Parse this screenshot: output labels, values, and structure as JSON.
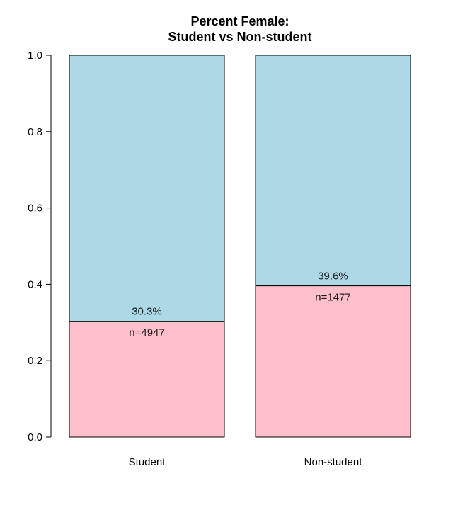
{
  "chart_data": {
    "type": "bar",
    "stacked": true,
    "title_lines": [
      "Percent Female:",
      "Student vs Non-student"
    ],
    "categories": [
      "Student",
      "Non-student"
    ],
    "series": [
      {
        "values": [
          0.303,
          0.396
        ],
        "color": "#FFC0CB"
      },
      {
        "values": [
          0.697,
          0.604
        ],
        "color": "#ADD8E6"
      }
    ],
    "percent_labels": [
      "30.3%",
      "39.6%"
    ],
    "n_labels": [
      "n=4947",
      "n=1477"
    ],
    "ylim": [
      0,
      1
    ],
    "yticks": [
      "0.0",
      "0.2",
      "0.4",
      "0.6",
      "0.8",
      "1.0"
    ],
    "xlabel": "",
    "ylabel": "",
    "grid": false,
    "legend": "none"
  }
}
